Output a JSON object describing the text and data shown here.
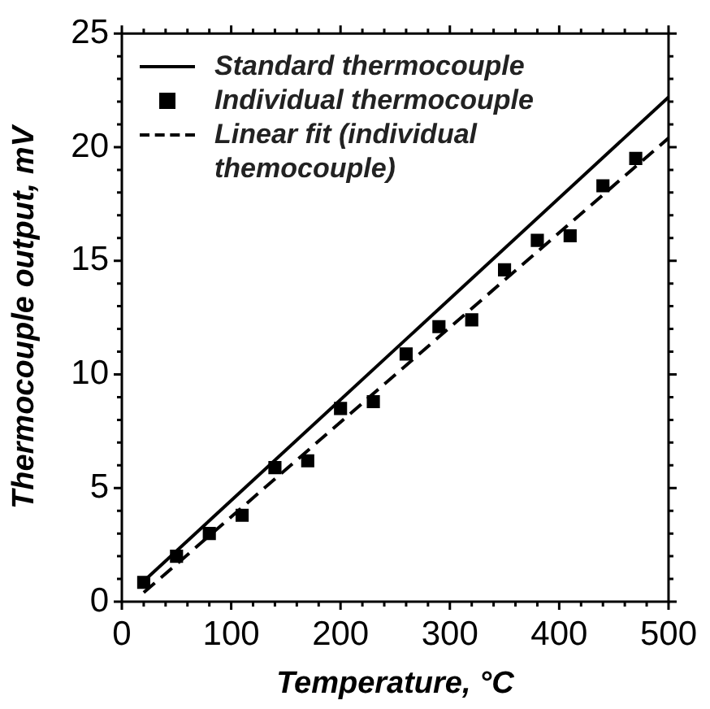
{
  "chart_data": {
    "type": "line",
    "xlabel": "Temperature, °C",
    "ylabel": "Thermocouple output, mV",
    "xlim": [
      0,
      500
    ],
    "ylim": [
      0,
      25
    ],
    "xticks": [
      0,
      {
        "value": 20,
        "label": null
      },
      {
        "value": 40,
        "label": null
      },
      {
        "value": 60,
        "label": null
      },
      {
        "value": 80,
        "label": null
      },
      100,
      {
        "value": 120,
        "label": null
      },
      {
        "value": 140,
        "label": null
      },
      {
        "value": 160,
        "label": null
      },
      {
        "value": 180,
        "label": null
      },
      200,
      {
        "value": 220,
        "label": null
      },
      {
        "value": 240,
        "label": null
      },
      {
        "value": 260,
        "label": null
      },
      {
        "value": 280,
        "label": null
      },
      300,
      {
        "value": 320,
        "label": null
      },
      {
        "value": 340,
        "label": null
      },
      {
        "value": 360,
        "label": null
      },
      {
        "value": 380,
        "label": null
      },
      400,
      {
        "value": 420,
        "label": null
      },
      {
        "value": 440,
        "label": null
      },
      {
        "value": 460,
        "label": null
      },
      {
        "value": 480,
        "label": null
      },
      500
    ],
    "yticks": [
      0,
      {
        "value": 1,
        "label": null
      },
      {
        "value": 2,
        "label": null
      },
      {
        "value": 3,
        "label": null
      },
      {
        "value": 4,
        "label": null
      },
      5,
      {
        "value": 6,
        "label": null
      },
      {
        "value": 7,
        "label": null
      },
      {
        "value": 8,
        "label": null
      },
      {
        "value": 9,
        "label": null
      },
      10,
      {
        "value": 11,
        "label": null
      },
      {
        "value": 12,
        "label": null
      },
      {
        "value": 13,
        "label": null
      },
      {
        "value": 14,
        "label": null
      },
      15,
      {
        "value": 16,
        "label": null
      },
      {
        "value": 17,
        "label": null
      },
      {
        "value": 18,
        "label": null
      },
      {
        "value": 19,
        "label": null
      },
      20,
      {
        "value": 21,
        "label": null
      },
      {
        "value": 22,
        "label": null
      },
      {
        "value": 23,
        "label": null
      },
      {
        "value": 24,
        "label": null
      },
      25
    ],
    "legend": "top left",
    "grid": false,
    "series": [
      {
        "name": "Standard thermocouple",
        "color": "#000000",
        "line_style": "solid",
        "marker": "none",
        "x": [
          20,
          500
        ],
        "values": [
          0.9,
          22.2
        ]
      },
      {
        "name": "Individual thermocouple",
        "type": "scatter",
        "color": "#000000",
        "marker": "square",
        "x": [
          20,
          50,
          80,
          110,
          140,
          170,
          200,
          230,
          260,
          290,
          320,
          350,
          380,
          410,
          440,
          470
        ],
        "values": [
          0.85,
          2.0,
          3.0,
          3.8,
          5.9,
          6.2,
          8.5,
          8.8,
          10.9,
          12.1,
          12.4,
          14.6,
          15.9,
          16.1,
          18.3,
          19.5
        ]
      },
      {
        "name": "Linear fit (individual themocouple)",
        "color": "#000000",
        "line_style": "dashed",
        "marker": "none",
        "x": [
          20,
          500
        ],
        "values": [
          0.4,
          20.4
        ]
      }
    ]
  }
}
